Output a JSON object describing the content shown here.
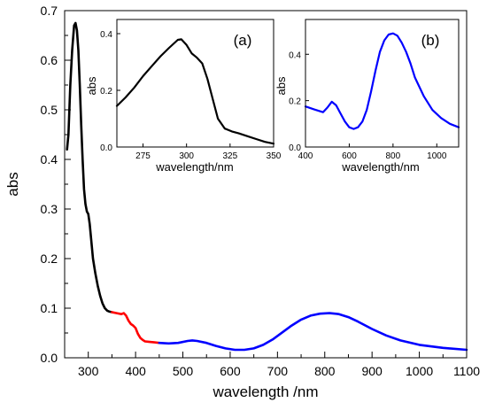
{
  "chart_data": [
    {
      "id": "main",
      "type": "line",
      "xlabel": "wavelength /nm",
      "ylabel": "abs",
      "xlim": [
        250,
        1100
      ],
      "ylim": [
        0,
        0.7
      ],
      "xticks": [
        "300",
        "400",
        "500",
        "600",
        "700",
        "800",
        "900",
        "1000",
        "1100"
      ],
      "yticks": [
        "0.0",
        "0.1",
        "0.2",
        "0.3",
        "0.4",
        "0.5",
        "0.6",
        "0.7"
      ],
      "grid": false,
      "series": [
        {
          "color": "#000000",
          "x": [
            255,
            258,
            262,
            266,
            270,
            273,
            276,
            279,
            282,
            285,
            288,
            291,
            294,
            297,
            300,
            303,
            306,
            310,
            315,
            320,
            325,
            330,
            335,
            340,
            345,
            350
          ],
          "y": [
            0.42,
            0.45,
            0.55,
            0.62,
            0.67,
            0.675,
            0.66,
            0.62,
            0.55,
            0.47,
            0.4,
            0.34,
            0.31,
            0.295,
            0.29,
            0.27,
            0.24,
            0.2,
            0.17,
            0.145,
            0.125,
            0.11,
            0.1,
            0.095,
            0.093,
            0.092
          ]
        },
        {
          "color": "#ff0000",
          "x": [
            350,
            360,
            370,
            375,
            380,
            385,
            390,
            395,
            400,
            405,
            410,
            415,
            420,
            430,
            440,
            450
          ],
          "y": [
            0.092,
            0.09,
            0.088,
            0.09,
            0.085,
            0.075,
            0.068,
            0.065,
            0.06,
            0.048,
            0.04,
            0.036,
            0.033,
            0.032,
            0.031,
            0.03
          ]
        },
        {
          "color": "#0000ff",
          "x": [
            450,
            470,
            490,
            510,
            520,
            530,
            550,
            570,
            590,
            610,
            630,
            650,
            670,
            690,
            710,
            730,
            750,
            770,
            790,
            810,
            830,
            850,
            870,
            900,
            930,
            960,
            1000,
            1050,
            1100
          ],
          "y": [
            0.03,
            0.029,
            0.03,
            0.034,
            0.035,
            0.034,
            0.03,
            0.024,
            0.019,
            0.016,
            0.016,
            0.019,
            0.026,
            0.037,
            0.051,
            0.065,
            0.077,
            0.085,
            0.089,
            0.09,
            0.088,
            0.082,
            0.073,
            0.058,
            0.045,
            0.035,
            0.026,
            0.02,
            0.016
          ]
        }
      ]
    },
    {
      "id": "inset_a",
      "type": "line",
      "annotation": "(a)",
      "xlabel": "wavelength/nm",
      "ylabel": "abs",
      "xlim": [
        260,
        350
      ],
      "ylim": [
        0,
        0.45
      ],
      "xticks": [
        "275",
        "300",
        "325",
        "350"
      ],
      "yticks": [
        "0.0",
        "0.2",
        "0.4"
      ],
      "grid": false,
      "series": [
        {
          "color": "#000000",
          "x": [
            260,
            265,
            270,
            275,
            280,
            285,
            290,
            295,
            297,
            300,
            303,
            306,
            309,
            312,
            315,
            318,
            322,
            326,
            330,
            335,
            340,
            345,
            350
          ],
          "y": [
            0.145,
            0.175,
            0.21,
            0.25,
            0.285,
            0.32,
            0.35,
            0.378,
            0.38,
            0.36,
            0.33,
            0.315,
            0.295,
            0.24,
            0.17,
            0.1,
            0.065,
            0.055,
            0.048,
            0.038,
            0.028,
            0.018,
            0.012
          ]
        }
      ]
    },
    {
      "id": "inset_b",
      "type": "line",
      "annotation": "(b)",
      "xlabel": "wavelength/nm",
      "ylabel": "abs",
      "xlim": [
        400,
        1100
      ],
      "ylim": [
        0,
        0.55
      ],
      "xticks": [
        "400",
        "600",
        "800",
        "1000"
      ],
      "yticks": [
        "0.0",
        "0.2",
        "0.4"
      ],
      "grid": false,
      "series": [
        {
          "color": "#0000ff",
          "x": [
            400,
            440,
            480,
            500,
            520,
            540,
            560,
            580,
            600,
            620,
            640,
            660,
            680,
            700,
            720,
            740,
            760,
            780,
            800,
            820,
            840,
            860,
            880,
            900,
            940,
            980,
            1020,
            1060,
            1100
          ],
          "y": [
            0.175,
            0.162,
            0.15,
            0.17,
            0.195,
            0.18,
            0.145,
            0.11,
            0.085,
            0.078,
            0.085,
            0.11,
            0.16,
            0.24,
            0.33,
            0.41,
            0.46,
            0.485,
            0.49,
            0.48,
            0.45,
            0.41,
            0.36,
            0.3,
            0.22,
            0.16,
            0.125,
            0.1,
            0.085
          ]
        }
      ]
    }
  ]
}
